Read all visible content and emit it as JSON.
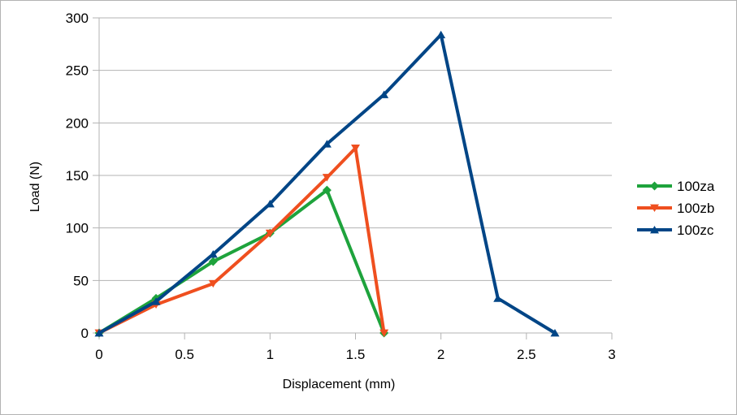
{
  "chart_data": {
    "type": "line",
    "title": "",
    "xlabel": "Displacement (mm)",
    "ylabel": "Load (N)",
    "xlim": [
      0,
      3
    ],
    "ylim": [
      0,
      300
    ],
    "x_ticks": [
      "0",
      "0.5",
      "1",
      "1.5",
      "2",
      "2.5",
      "3"
    ],
    "y_ticks": [
      "0",
      "50",
      "100",
      "150",
      "200",
      "250",
      "300"
    ],
    "grid": "horizontal",
    "legend_position": "right",
    "series": [
      {
        "name": "100za",
        "color": "#1ea33c",
        "marker": "diamond",
        "x": [
          0,
          0.333,
          0.667,
          1.0,
          1.333,
          1.667
        ],
        "y": [
          0,
          33,
          68,
          95,
          136,
          0
        ]
      },
      {
        "name": "100zb",
        "color": "#ef4f1f",
        "marker": "triangle-down",
        "x": [
          0,
          0.333,
          0.667,
          1.0,
          1.333,
          1.5,
          1.667
        ],
        "y": [
          0,
          27,
          47,
          95,
          148,
          176,
          0
        ]
      },
      {
        "name": "100zc",
        "color": "#004586",
        "marker": "triangle-up",
        "x": [
          0,
          0.333,
          0.667,
          1.0,
          1.333,
          1.667,
          2.0,
          2.333,
          2.667
        ],
        "y": [
          0,
          30,
          75,
          123,
          180,
          227,
          284,
          33,
          0
        ]
      }
    ]
  }
}
